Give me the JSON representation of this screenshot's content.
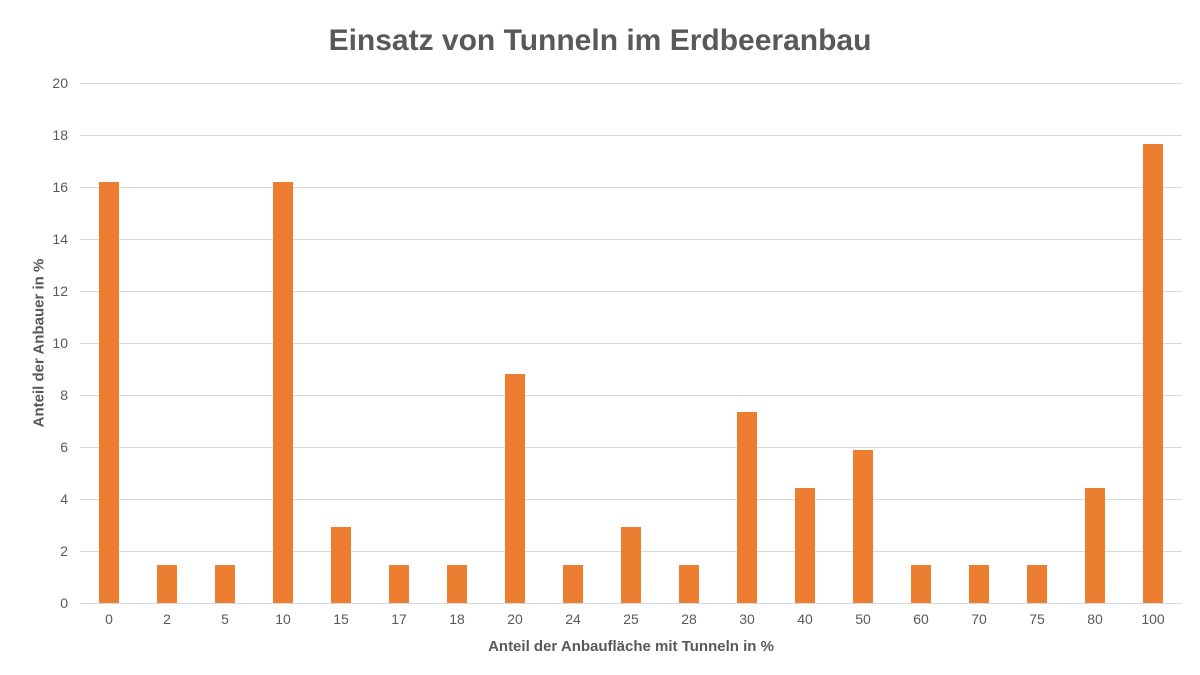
{
  "page": {
    "background_color": "#ffffff"
  },
  "chart_data": {
    "type": "bar",
    "title": "Einsatz von Tunneln im Erdbeeranbau",
    "xlabel": "Anteil der Anbaufläche mit Tunneln in %",
    "ylabel": "Anteil der Anbauer in %",
    "categories": [
      "0",
      "2",
      "5",
      "10",
      "15",
      "17",
      "18",
      "20",
      "24",
      "25",
      "28",
      "30",
      "40",
      "50",
      "60",
      "70",
      "75",
      "80",
      "100"
    ],
    "values": [
      16.18,
      1.47,
      1.47,
      16.18,
      2.94,
      1.47,
      1.47,
      8.82,
      1.47,
      2.94,
      1.47,
      7.35,
      4.41,
      5.88,
      1.47,
      1.47,
      1.47,
      4.41,
      17.65
    ],
    "ylim": [
      0,
      20
    ],
    "ytick_step": 2,
    "grid": true,
    "legend": "none",
    "bar_color": "#ed7d31",
    "grid_color": "#d9d9d9",
    "text_color": "#595959"
  }
}
